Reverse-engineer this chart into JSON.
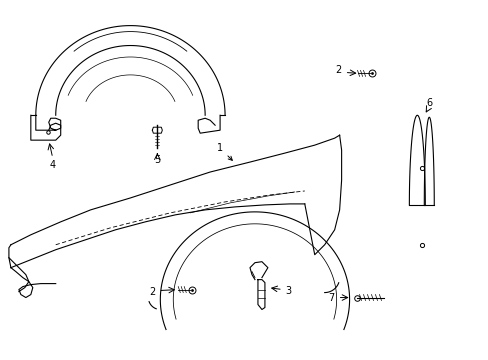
{
  "background_color": "#ffffff",
  "line_color": "#000000",
  "figsize": [
    4.89,
    3.6
  ],
  "dpi": 100,
  "font_size": 7,
  "lw": 0.8
}
